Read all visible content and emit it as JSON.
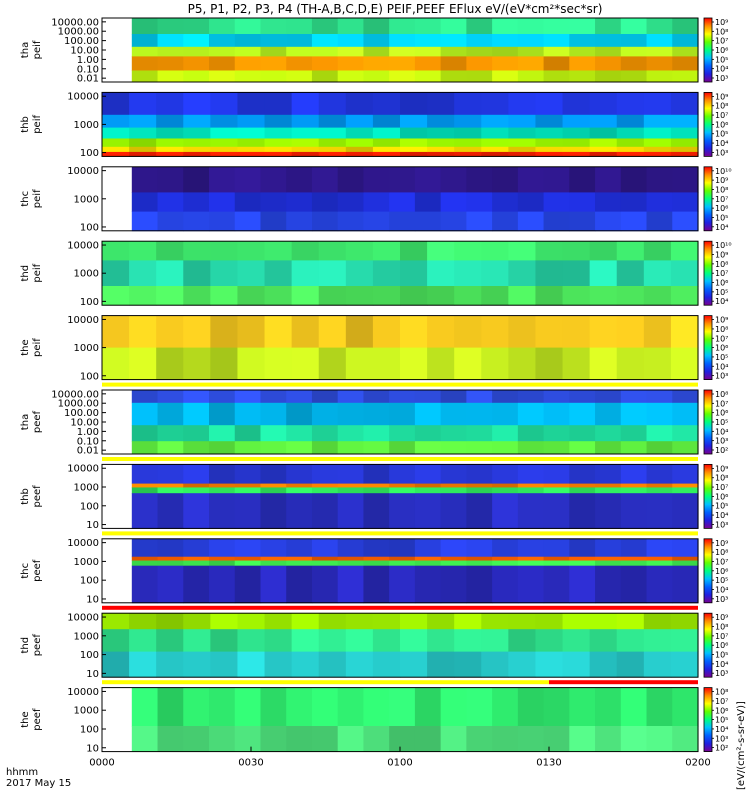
{
  "chart_data": {
    "type": "heatmap",
    "title": "P5, P1, P2, P3, P4 (TH-A,B,C,D,E) PEIF,PEEF EFlux eV/(eV*cm²*sec*sr)",
    "x_axis": {
      "caption_line1": "hhmm",
      "caption_line2": "2017 May 15",
      "ticks": [
        "0000",
        "0030",
        "0100",
        "0130",
        "0200"
      ],
      "tick_minutes": [
        0,
        30,
        60,
        90,
        120
      ],
      "range_minutes": [
        0,
        120
      ]
    },
    "colorbar_label": "[eV/(cm²-s-sr-eV)]",
    "colorbar_colors": [
      "#7a0090",
      "#2020e0",
      "#0060ff",
      "#00c0ff",
      "#00ff80",
      "#60ff00",
      "#ffff00",
      "#ff9000",
      "#ff0000"
    ],
    "panels": [
      {
        "name": "tha peif",
        "ylabel": [
          "tha",
          "peif"
        ],
        "yticks": [
          "10000.00",
          "1000.00",
          "100.00",
          "10.00",
          "1.00",
          "0.10",
          "0.01"
        ],
        "data_start_min": 6,
        "cbar_ticks": [
          "10⁹",
          "10⁸",
          "10⁷",
          "10⁶",
          "10⁵",
          "10⁴",
          "10³"
        ],
        "base_color": "#70ff30",
        "bands": [
          {
            "from": 0.0,
            "to": 0.25,
            "color": "#30e890"
          },
          {
            "from": 0.25,
            "to": 0.45,
            "color": "#00d8ff"
          },
          {
            "from": 0.45,
            "to": 0.6,
            "color": "#c0ff20"
          },
          {
            "from": 0.6,
            "to": 0.82,
            "color": "#ff9a00"
          },
          {
            "from": 0.82,
            "to": 1.0,
            "color": "#c8ff10"
          }
        ],
        "status_bar": ""
      },
      {
        "name": "thb peif",
        "ylabel": [
          "thb",
          "peif"
        ],
        "yticks": [
          "10000",
          "1000",
          "100"
        ],
        "data_start_min": 0,
        "cbar_ticks": [
          "10⁹",
          "10⁸",
          "10⁷",
          "10⁶",
          "10⁵",
          "10⁴",
          "10³"
        ],
        "base_color": "#2a2ae0",
        "bands": [
          {
            "from": 0.0,
            "to": 0.35,
            "color": "#2238e8"
          },
          {
            "from": 0.35,
            "to": 0.55,
            "color": "#00a0ff"
          },
          {
            "from": 0.55,
            "to": 0.72,
            "color": "#00e8c0"
          },
          {
            "from": 0.72,
            "to": 0.85,
            "color": "#a0ff00"
          },
          {
            "from": 0.85,
            "to": 0.93,
            "color": "#ffe000"
          },
          {
            "from": 0.93,
            "to": 1.0,
            "color": "#ff2000"
          }
        ],
        "status_bar": ""
      },
      {
        "name": "thc peif",
        "ylabel": [
          "thc",
          "peif"
        ],
        "yticks": [
          "10000",
          "1000",
          "100"
        ],
        "data_start_min": 6,
        "cbar_ticks": [
          "10¹⁰",
          "10⁹",
          "10⁸",
          "10⁷",
          "10⁶",
          "10⁵",
          "10⁴"
        ],
        "base_color": "#3020d0",
        "bands": [
          {
            "from": 0.0,
            "to": 0.4,
            "color": "#301890"
          },
          {
            "from": 0.4,
            "to": 0.7,
            "color": "#2030e0"
          },
          {
            "from": 0.7,
            "to": 1.0,
            "color": "#2848f0"
          }
        ],
        "status_bar": ""
      },
      {
        "name": "thd peif",
        "ylabel": [
          "thd",
          "peif"
        ],
        "yticks": [
          "10000",
          "1000",
          "100"
        ],
        "data_start_min": 0,
        "cbar_ticks": [
          "10¹⁰",
          "10⁹",
          "10⁸",
          "10⁷",
          "10⁶",
          "10⁵",
          "10⁴"
        ],
        "base_color": "#30e888",
        "bands": [
          {
            "from": 0.0,
            "to": 0.3,
            "color": "#40f070"
          },
          {
            "from": 0.3,
            "to": 0.7,
            "color": "#28e0b0"
          },
          {
            "from": 0.7,
            "to": 1.0,
            "color": "#50f060"
          }
        ],
        "status_bar": ""
      },
      {
        "name": "the peif",
        "ylabel": [
          "the",
          "peif"
        ],
        "yticks": [
          "10000",
          "1000",
          "100"
        ],
        "data_start_min": 0,
        "cbar_ticks": [
          "10⁹",
          "10⁸",
          "10⁷",
          "10⁶",
          "10⁵",
          "10⁴",
          "10³"
        ],
        "base_color": "#f0e020",
        "bands": [
          {
            "from": 0.0,
            "to": 0.5,
            "color": "#ffd020"
          },
          {
            "from": 0.5,
            "to": 1.0,
            "color": "#c8f020"
          }
        ],
        "status_bar": "yellow"
      },
      {
        "name": "tha peef",
        "ylabel": [
          "tha",
          "peef"
        ],
        "yticks": [
          "10000.00",
          "1000.00",
          "100.00",
          "10.00",
          "1.00",
          "0.10",
          "0.01"
        ],
        "data_start_min": 6,
        "cbar_ticks": [
          "10⁸",
          "10⁷",
          "10⁶",
          "10⁵",
          "10⁴",
          "10³",
          "10²"
        ],
        "base_color": "#00c8e8",
        "bands": [
          {
            "from": 0.0,
            "to": 0.2,
            "color": "#3050e8"
          },
          {
            "from": 0.2,
            "to": 0.55,
            "color": "#00b8f0"
          },
          {
            "from": 0.55,
            "to": 0.8,
            "color": "#20e0a0"
          },
          {
            "from": 0.8,
            "to": 1.0,
            "color": "#60f040"
          }
        ],
        "status_bar": "yellow"
      },
      {
        "name": "thb peef",
        "ylabel": [
          "thb",
          "peef"
        ],
        "yticks": [
          "10000",
          "1000",
          "100",
          "10"
        ],
        "data_start_min": 6,
        "cbar_ticks": [
          "10⁹",
          "10⁸",
          "10⁷",
          "10⁶",
          "10⁵",
          "10⁴",
          "10³"
        ],
        "base_color": "#2a2ad8",
        "bands": [
          {
            "from": 0.0,
            "to": 0.3,
            "color": "#2838d8"
          },
          {
            "from": 0.3,
            "to": 0.36,
            "color": "#ff8000"
          },
          {
            "from": 0.36,
            "to": 0.45,
            "color": "#30f060"
          },
          {
            "from": 0.45,
            "to": 1.0,
            "color": "#2a30c8"
          }
        ],
        "status_bar": "yellow"
      },
      {
        "name": "thc peef",
        "ylabel": [
          "thc",
          "peef"
        ],
        "yticks": [
          "10000",
          "1000",
          "100",
          "10"
        ],
        "data_start_min": 6,
        "cbar_ticks": [
          "10⁹",
          "10⁸",
          "10⁷",
          "10⁶",
          "10⁵",
          "10⁴",
          "10³"
        ],
        "base_color": "#3030d0",
        "bands": [
          {
            "from": 0.0,
            "to": 0.28,
            "color": "#2840e0"
          },
          {
            "from": 0.28,
            "to": 0.34,
            "color": "#ff6000"
          },
          {
            "from": 0.34,
            "to": 0.42,
            "color": "#40f050"
          },
          {
            "from": 0.42,
            "to": 1.0,
            "color": "#2a2ac0"
          }
        ],
        "status_bar": "red"
      },
      {
        "name": "thd peef",
        "ylabel": [
          "thd",
          "peef"
        ],
        "yticks": [
          "10000",
          "1000",
          "100",
          "10"
        ],
        "data_start_min": 0,
        "cbar_ticks": [
          "10⁹",
          "10⁸",
          "10⁷",
          "10⁶",
          "10⁵",
          "10⁴",
          "10³"
        ],
        "base_color": "#30d880",
        "bands": [
          {
            "from": 0.0,
            "to": 0.25,
            "color": "#a0f000"
          },
          {
            "from": 0.25,
            "to": 0.6,
            "color": "#30e890"
          },
          {
            "from": 0.6,
            "to": 1.0,
            "color": "#28d0d0"
          }
        ],
        "status_bar": "yellow-red"
      },
      {
        "name": "the peef",
        "ylabel": [
          "the",
          "peef"
        ],
        "yticks": [
          "10000",
          "1000",
          "100",
          "10"
        ],
        "data_start_min": 6,
        "cbar_ticks": [
          "10⁸",
          "10⁷",
          "10⁶",
          "10⁵",
          "10⁴",
          "10³",
          "10²"
        ],
        "base_color": "#30f060",
        "bands": [
          {
            "from": 0.0,
            "to": 0.6,
            "color": "#30f070"
          },
          {
            "from": 0.6,
            "to": 1.0,
            "color": "#50e880"
          }
        ],
        "status_bar": ""
      }
    ]
  }
}
